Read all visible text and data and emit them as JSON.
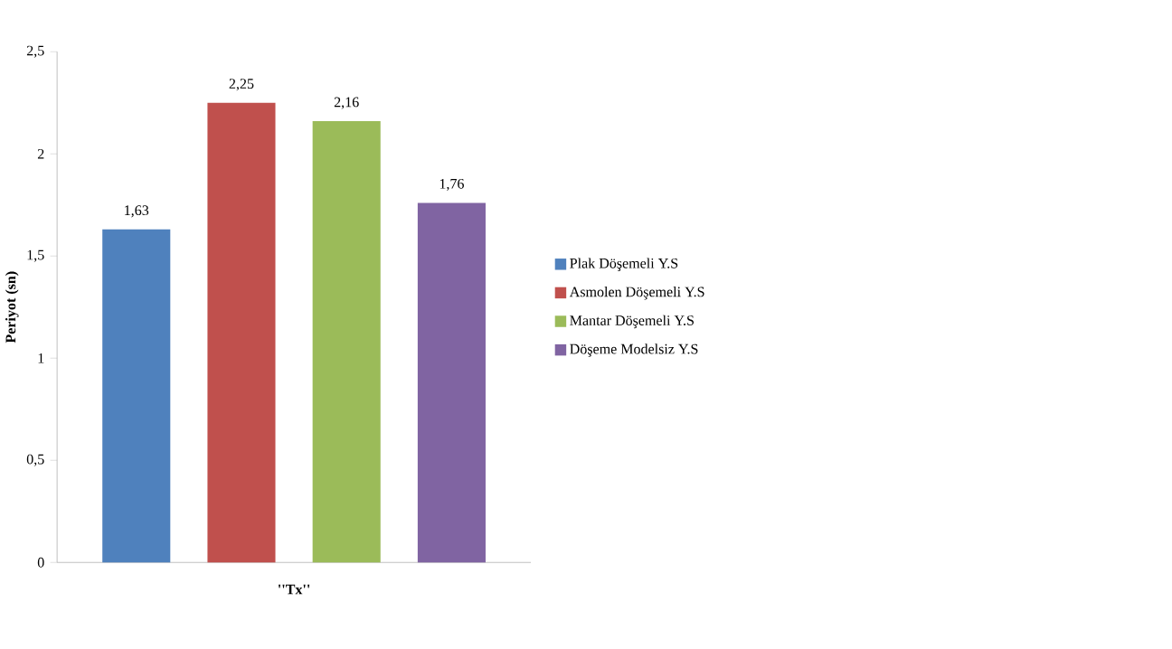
{
  "chart_data": {
    "type": "bar",
    "xlabel": "''Tx''",
    "ylabel": "Periyot (sn)",
    "categories": [
      null
    ],
    "series": [
      {
        "name": "Plak Döşemeli Y.S",
        "color": "#4f81bd",
        "values": [
          1.63
        ],
        "value_labels": [
          "1,63"
        ]
      },
      {
        "name": "Asmolen Döşemeli Y.S",
        "color": "#c0504d",
        "values": [
          2.25
        ],
        "value_labels": [
          "2,25"
        ]
      },
      {
        "name": "Mantar Döşemeli Y.S",
        "color": "#9bbb59",
        "values": [
          2.16
        ],
        "value_labels": [
          "2,16"
        ]
      },
      {
        "name": "Döşeme Modelsiz Y.S",
        "color": "#8064a2",
        "values": [
          1.76
        ],
        "value_labels": [
          "1,76"
        ]
      }
    ],
    "ylim": [
      0,
      2.5
    ],
    "yticks": [
      0,
      {
        "value": 0.5,
        "label": "0,5"
      },
      1,
      {
        "value": 1.5,
        "label": "1,5"
      },
      2,
      {
        "value": 2.5,
        "label": "2,5"
      }
    ],
    "legend": "right"
  }
}
